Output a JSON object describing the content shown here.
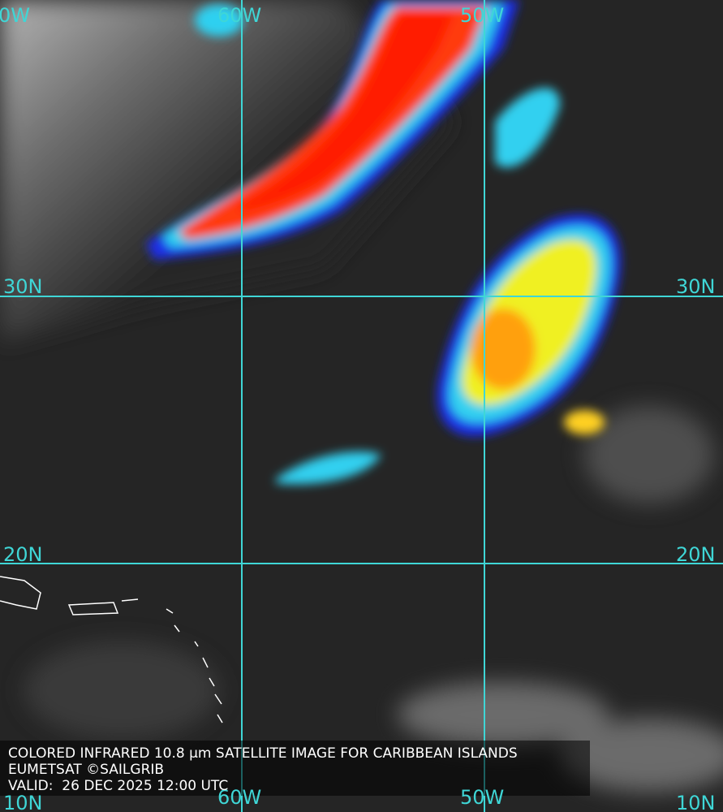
{
  "grid_labels": {
    "top": [
      "0W",
      "60W",
      "50W"
    ],
    "left": [
      "30N",
      "20N",
      "10N"
    ],
    "right": [
      "30N",
      "20N",
      "10N"
    ],
    "bottom": [
      "60W",
      "50W"
    ]
  },
  "caption": {
    "line1": "COLORED INFRARED 10.8 µm SATELLITE IMAGE FOR CARIBBEAN ISLANDS",
    "line2": "EUMETSAT ©SAILGRIB",
    "line3": "VALID:  26 DEC 2025 12:00 UTC"
  }
}
